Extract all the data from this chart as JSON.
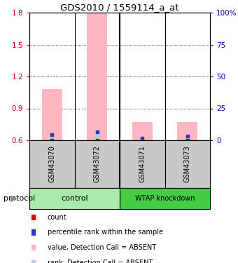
{
  "title": "GDS2010 / 1559114_a_at",
  "samples": [
    "GSM43070",
    "GSM43072",
    "GSM43071",
    "GSM43073"
  ],
  "bar_values": [
    1.08,
    1.8,
    0.77,
    0.77
  ],
  "bar_base": 0.6,
  "rank_values": [
    0.65,
    0.68,
    0.62,
    0.64
  ],
  "bar_color_absent": "#FFB6C1",
  "rank_bar_color_absent": "#B8C8E8",
  "red_square_color": "#CC0000",
  "blue_square_color": "#3333BB",
  "ylim_left": [
    0.6,
    1.8
  ],
  "ylim_right": [
    0,
    100
  ],
  "yticks_left": [
    0.6,
    0.9,
    1.2,
    1.5,
    1.8
  ],
  "yticks_right": [
    0,
    25,
    50,
    75,
    100
  ],
  "ytick_labels_left": [
    "0.6",
    "0.9",
    "1.2",
    "1.5",
    "1.8"
  ],
  "ytick_labels_right": [
    "0",
    "25",
    "50",
    "75",
    "100%"
  ],
  "left_axis_color": "#CC0000",
  "right_axis_color": "#0000CC",
  "grid_values": [
    0.9,
    1.2,
    1.5
  ],
  "bar_width": 0.45,
  "rank_bar_width": 0.09,
  "control_color": "#AAEAAA",
  "wtap_color": "#44CC44",
  "sample_box_color": "#C8C8C8",
  "legend_items": [
    {
      "color": "#CC0000",
      "label": "count"
    },
    {
      "color": "#3333BB",
      "label": "percentile rank within the sample"
    },
    {
      "color": "#FFB6C1",
      "label": "value, Detection Call = ABSENT"
    },
    {
      "color": "#B8C8E8",
      "label": "rank, Detection Call = ABSENT"
    }
  ]
}
